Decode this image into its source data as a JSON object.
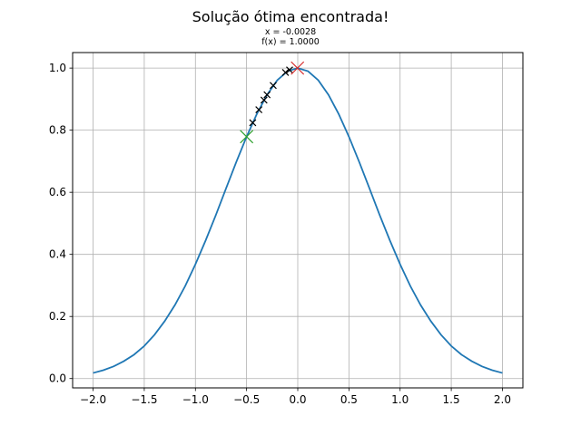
{
  "chart_data": {
    "type": "line",
    "title": "Solução ótima encontrada!",
    "subtitle_lines": [
      "x = -0.0028",
      "f(x) = 1.0000"
    ],
    "xlabel": "",
    "ylabel": "",
    "xlim": [
      -2.2,
      2.2
    ],
    "ylim": [
      -0.03,
      1.05
    ],
    "grid": true,
    "x_ticks": [
      -2.0,
      -1.5,
      -1.0,
      -0.5,
      0.0,
      0.5,
      1.0,
      1.5,
      2.0
    ],
    "x_tick_labels": [
      "−2.0",
      "−1.5",
      "−1.0",
      "−0.5",
      "0.0",
      "0.5",
      "1.0",
      "1.5",
      "2.0"
    ],
    "y_ticks": [
      0.0,
      0.2,
      0.4,
      0.6,
      0.8,
      1.0
    ],
    "y_tick_labels": [
      "0.0",
      "0.2",
      "0.4",
      "0.6",
      "0.8",
      "1.0"
    ],
    "series": [
      {
        "kind": "curve",
        "color": "#1f77b4",
        "x": [
          -2.0,
          -1.9,
          -1.8,
          -1.7,
          -1.6,
          -1.5,
          -1.4,
          -1.3,
          -1.2,
          -1.1,
          -1.0,
          -0.9,
          -0.8,
          -0.7,
          -0.6,
          -0.5,
          -0.4,
          -0.3,
          -0.2,
          -0.1,
          0.0,
          0.1,
          0.2,
          0.3,
          0.4,
          0.5,
          0.6,
          0.7,
          0.8,
          0.9,
          1.0,
          1.1,
          1.2,
          1.3,
          1.4,
          1.5,
          1.6,
          1.7,
          1.8,
          1.9,
          2.0
        ],
        "y": [
          0.018,
          0.027,
          0.039,
          0.056,
          0.077,
          0.105,
          0.141,
          0.185,
          0.237,
          0.298,
          0.368,
          0.445,
          0.527,
          0.613,
          0.698,
          0.779,
          0.852,
          0.914,
          0.961,
          0.99,
          1.0,
          0.99,
          0.961,
          0.914,
          0.852,
          0.779,
          0.698,
          0.613,
          0.527,
          0.445,
          0.368,
          0.298,
          0.237,
          0.185,
          0.141,
          0.105,
          0.077,
          0.056,
          0.039,
          0.027,
          0.018
        ]
      },
      {
        "kind": "path-markers",
        "color": "#000000",
        "x": [
          -0.44,
          -0.38,
          -0.33,
          -0.3,
          -0.24,
          -0.12,
          -0.08
        ],
        "y": [
          0.824,
          0.866,
          0.897,
          0.914,
          0.944,
          0.986,
          0.994
        ]
      },
      {
        "kind": "start-marker",
        "color": "#2ca02c",
        "x": [
          -0.5
        ],
        "y": [
          0.779
        ]
      },
      {
        "kind": "optimum-marker",
        "color": "#d62728",
        "x": [
          -0.0028
        ],
        "y": [
          1.0
        ]
      }
    ]
  }
}
